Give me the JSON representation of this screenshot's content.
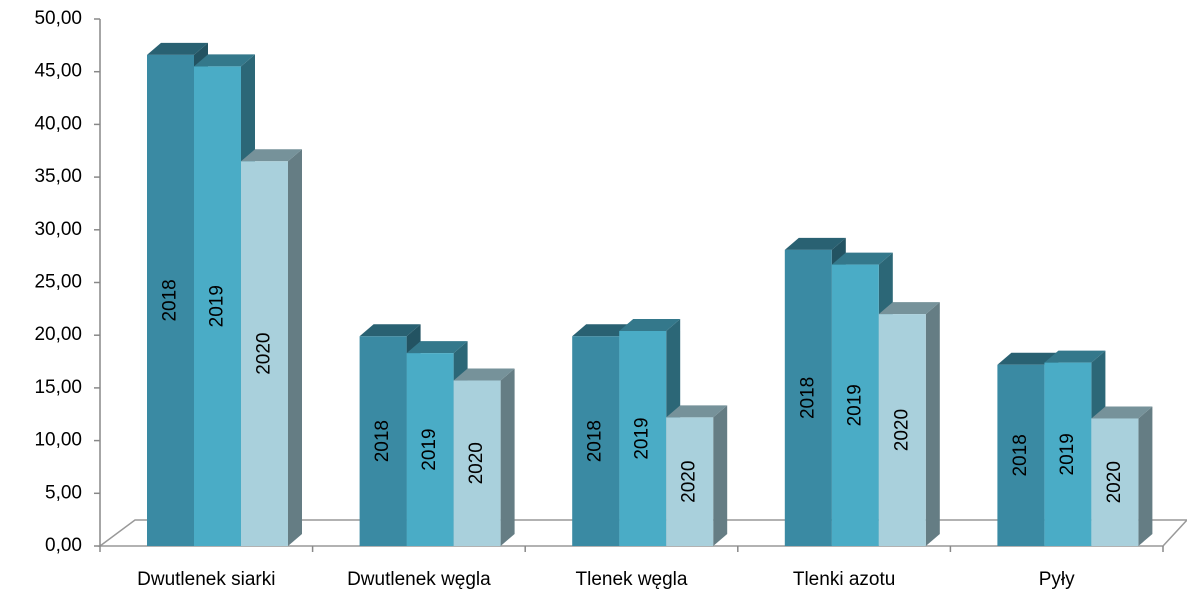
{
  "chart_data": {
    "type": "bar3d",
    "categories": [
      "Dwutlenek siarki",
      "Dwutlenek węgla",
      "Tlenek węgla",
      "Tlenki azotu",
      "Pyły"
    ],
    "series": [
      {
        "name": "2018",
        "color": "#3a8aa3",
        "values": [
          46.6,
          19.9,
          19.9,
          28.1,
          17.2
        ]
      },
      {
        "name": "2019",
        "color": "#4aacc6",
        "values": [
          45.5,
          18.3,
          20.4,
          26.7,
          17.4
        ]
      },
      {
        "name": "2020",
        "color": "#a9d0dc",
        "values": [
          36.5,
          15.7,
          12.2,
          22.0,
          12.1
        ]
      }
    ],
    "ylim": [
      0,
      50
    ],
    "yticks": [
      {
        "value": 0,
        "label": "0,00"
      },
      {
        "value": 5,
        "label": "5,00"
      },
      {
        "value": 10,
        "label": "10,00"
      },
      {
        "value": 15,
        "label": "15,00"
      },
      {
        "value": 20,
        "label": "20,00"
      },
      {
        "value": 25,
        "label": "25,00"
      },
      {
        "value": 30,
        "label": "30,00"
      },
      {
        "value": 35,
        "label": "35,00"
      },
      {
        "value": 40,
        "label": "40,00"
      },
      {
        "value": 45,
        "label": "45,00"
      },
      {
        "value": 50,
        "label": "50,00"
      }
    ]
  }
}
